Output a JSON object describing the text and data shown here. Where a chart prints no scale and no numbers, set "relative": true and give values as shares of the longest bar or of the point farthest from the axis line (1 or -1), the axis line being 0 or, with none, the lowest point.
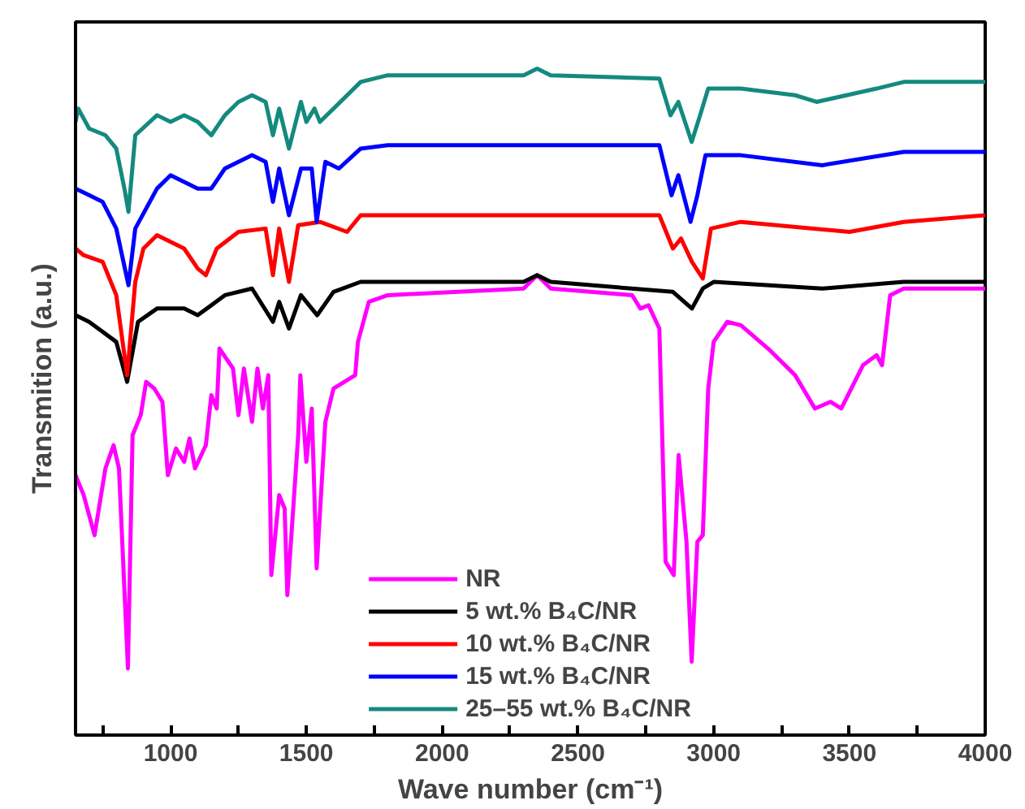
{
  "chart_data": {
    "type": "line",
    "relative": true,
    "xlabel": "Wave number (cm⁻¹)",
    "ylabel": "Transmition (a.u.)",
    "xlim": [
      650,
      4000
    ],
    "xticks": [
      {
        "value": 750,
        "label": null
      },
      1000,
      {
        "value": 1250,
        "label": null
      },
      1500,
      {
        "value": 1750,
        "label": null
      },
      2000,
      {
        "value": 2250,
        "label": null
      },
      2500,
      {
        "value": 2750,
        "label": null
      },
      3000,
      {
        "value": 3250,
        "label": null
      },
      3500,
      {
        "value": 3750,
        "label": null
      },
      4000
    ],
    "tick_labels": "x",
    "grid": false,
    "legend": "bottom",
    "marker": "none",
    "line_style": "solid",
    "series": [
      {
        "name": "NR",
        "color": "#ff00ff",
        "x": [
          650,
          680,
          720,
          760,
          790,
          810,
          843,
          860,
          890,
          910,
          940,
          970,
          990,
          1020,
          1050,
          1070,
          1090,
          1130,
          1150,
          1170,
          1180,
          1230,
          1250,
          1270,
          1300,
          1320,
          1340,
          1360,
          1371,
          1400,
          1420,
          1430,
          1470,
          1478,
          1500,
          1520,
          1538,
          1570,
          1600,
          1640,
          1680,
          1690,
          1730,
          1800,
          2300,
          2350,
          2400,
          2700,
          2730,
          2760,
          2800,
          2823,
          2853,
          2871,
          2900,
          2919,
          2940,
          2960,
          2980,
          3000,
          3050,
          3100,
          3200,
          3300,
          3373,
          3430,
          3470,
          3550,
          3600,
          3620,
          3650,
          3700,
          4000
        ],
        "values": [
          0.39,
          0.36,
          0.3,
          0.4,
          0.435,
          0.4,
          0.1,
          0.45,
          0.48,
          0.53,
          0.52,
          0.5,
          0.39,
          0.43,
          0.41,
          0.445,
          0.4,
          0.435,
          0.51,
          0.49,
          0.58,
          0.55,
          0.48,
          0.55,
          0.47,
          0.55,
          0.49,
          0.54,
          0.24,
          0.36,
          0.34,
          0.21,
          0.45,
          0.54,
          0.41,
          0.49,
          0.25,
          0.47,
          0.52,
          0.53,
          0.54,
          0.59,
          0.65,
          0.66,
          0.67,
          0.69,
          0.67,
          0.66,
          0.64,
          0.645,
          0.61,
          0.26,
          0.24,
          0.42,
          0.29,
          0.11,
          0.29,
          0.3,
          0.52,
          0.59,
          0.62,
          0.615,
          0.58,
          0.54,
          0.49,
          0.5,
          0.49,
          0.555,
          0.57,
          0.555,
          0.66,
          0.67,
          0.67
        ]
      },
      {
        "name": "5 wt.% B₄C/NR",
        "color": "#000000",
        "x": [
          650,
          700,
          750,
          800,
          840,
          880,
          950,
          1050,
          1100,
          1200,
          1300,
          1377,
          1400,
          1436,
          1480,
          1540,
          1600,
          1700,
          2300,
          2350,
          2400,
          2850,
          2920,
          2960,
          3000,
          3400,
          3700,
          4000
        ],
        "values": [
          0.63,
          0.62,
          0.605,
          0.59,
          0.53,
          0.62,
          0.64,
          0.64,
          0.63,
          0.66,
          0.67,
          0.62,
          0.65,
          0.61,
          0.66,
          0.63,
          0.665,
          0.68,
          0.68,
          0.69,
          0.68,
          0.665,
          0.64,
          0.67,
          0.68,
          0.67,
          0.68,
          0.68
        ]
      },
      {
        "name": "10 wt.% B₄C/NR",
        "color": "#ff0000",
        "x": [
          650,
          680,
          750,
          800,
          840,
          870,
          900,
          950,
          1000,
          1050,
          1100,
          1130,
          1170,
          1250,
          1350,
          1377,
          1400,
          1436,
          1470,
          1550,
          1650,
          1700,
          2800,
          2850,
          2880,
          2920,
          2960,
          2990,
          3100,
          3500,
          3700,
          4000
        ],
        "values": [
          0.73,
          0.72,
          0.71,
          0.66,
          0.54,
          0.68,
          0.73,
          0.75,
          0.74,
          0.73,
          0.7,
          0.69,
          0.73,
          0.755,
          0.76,
          0.69,
          0.76,
          0.68,
          0.765,
          0.77,
          0.755,
          0.78,
          0.78,
          0.73,
          0.745,
          0.71,
          0.685,
          0.76,
          0.77,
          0.755,
          0.77,
          0.78
        ]
      },
      {
        "name": "15 wt.% B₄C/NR",
        "color": "#0000ff",
        "x": [
          650,
          700,
          750,
          800,
          845,
          870,
          950,
          1000,
          1050,
          1100,
          1150,
          1200,
          1300,
          1350,
          1377,
          1400,
          1436,
          1480,
          1520,
          1538,
          1570,
          1620,
          1700,
          1800,
          2800,
          2845,
          2870,
          2915,
          2940,
          2970,
          3100,
          3400,
          3700,
          4000
        ],
        "values": [
          0.82,
          0.81,
          0.8,
          0.76,
          0.675,
          0.76,
          0.82,
          0.84,
          0.83,
          0.82,
          0.82,
          0.85,
          0.87,
          0.86,
          0.8,
          0.85,
          0.78,
          0.85,
          0.85,
          0.77,
          0.86,
          0.85,
          0.88,
          0.885,
          0.885,
          0.81,
          0.84,
          0.77,
          0.81,
          0.87,
          0.87,
          0.855,
          0.875,
          0.875
        ]
      },
      {
        "name": "25–55 wt.% B₄C/NR",
        "color": "#138a7f",
        "x": [
          650,
          660,
          700,
          760,
          800,
          830,
          845,
          870,
          950,
          1000,
          1050,
          1100,
          1150,
          1200,
          1250,
          1300,
          1350,
          1377,
          1400,
          1436,
          1480,
          1500,
          1530,
          1550,
          1600,
          1700,
          1800,
          2300,
          2350,
          2400,
          2800,
          2841,
          2870,
          2919,
          2950,
          2980,
          3100,
          3300,
          3379,
          3600,
          3700,
          4000
        ],
        "values": [
          0.92,
          0.94,
          0.91,
          0.9,
          0.88,
          0.82,
          0.785,
          0.9,
          0.93,
          0.92,
          0.93,
          0.92,
          0.9,
          0.93,
          0.95,
          0.96,
          0.95,
          0.9,
          0.94,
          0.88,
          0.95,
          0.92,
          0.94,
          0.92,
          0.94,
          0.98,
          0.99,
          0.99,
          1.0,
          0.99,
          0.985,
          0.93,
          0.95,
          0.89,
          0.93,
          0.97,
          0.97,
          0.96,
          0.95,
          0.97,
          0.98,
          0.98
        ]
      }
    ]
  }
}
